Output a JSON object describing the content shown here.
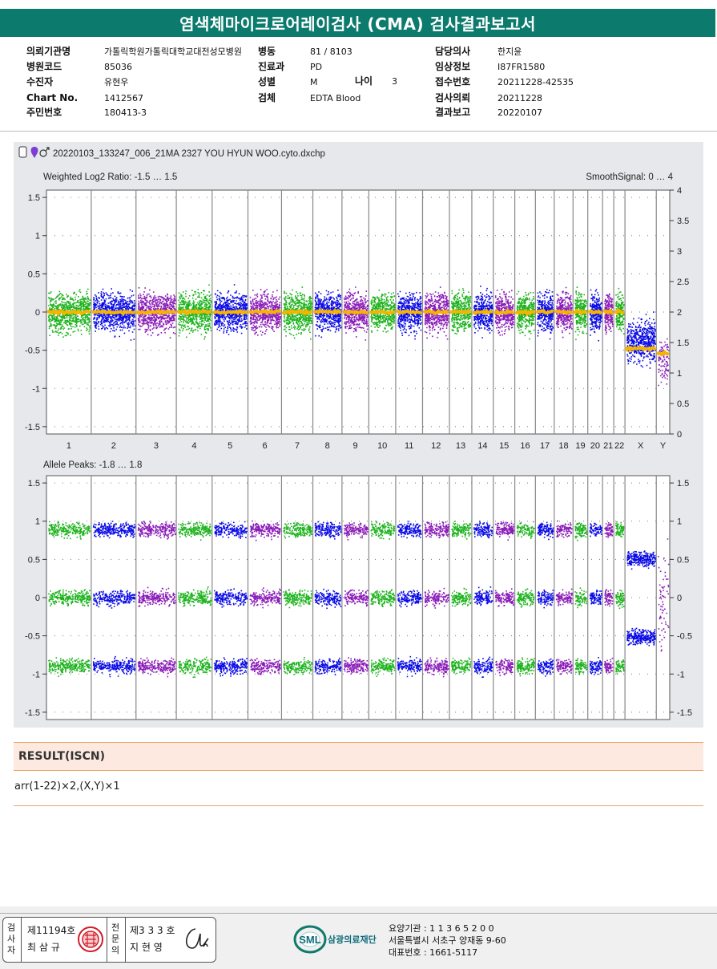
{
  "title": "염색체마이크로어레이검사 (CMA) 검사결과보고서",
  "info_rows": [
    [
      {
        "label": "의뢰기관명",
        "value": "가톨릭학원가톨릭대학교대전성모병원"
      },
      {
        "label": "병동",
        "value": "81 / 8103"
      },
      {
        "label": "담당의사",
        "value": "한지윤"
      }
    ],
    [
      {
        "label": "병원코드",
        "value": "85036"
      },
      {
        "label": "진료과",
        "value": "PD"
      },
      {
        "label": "임상정보",
        "value": "I87FR1580"
      }
    ],
    [
      {
        "label": "수진자",
        "value": "유현우"
      },
      {
        "label": "성별",
        "value": "M"
      },
      {
        "label": "접수번호",
        "value": "20211228-42535"
      }
    ],
    [
      {
        "label": "Chart No.",
        "value": "1412567"
      },
      {
        "label": "검체",
        "value": "EDTA Blood"
      },
      {
        "label": "검사의뢰",
        "value": "20211228"
      }
    ],
    [
      {
        "label": "주민번호",
        "value": "180413-3"
      },
      {
        "label": "",
        "value": ""
      },
      {
        "label": "결과보고",
        "value": "20220107"
      }
    ]
  ],
  "age": {
    "label": "나이",
    "value": "3"
  },
  "plot": {
    "file_name": "20220103_133247_006_21MA 2327 YOU HYUN WOO.cyto.dxchp",
    "top": {
      "left_title": "Weighted Log2 Ratio: -1.5 … 1.5",
      "right_title": "SmoothSignal: 0 … 4",
      "left_ticks": [
        "1.5",
        "1",
        "0.5",
        "0",
        "-0.5",
        "-1",
        "-1.5"
      ],
      "right_ticks": [
        "4",
        "3.5",
        "3",
        "2.5",
        "2",
        "1.5",
        "1",
        "0.5",
        "0"
      ]
    },
    "bottom": {
      "left_title": "Allele Peaks: -1.8 … 1.8",
      "left_ticks": [
        "1.5",
        "1",
        "0.5",
        "0",
        "-0.5",
        "-1",
        "-1.5"
      ],
      "right_ticks": [
        "1.5",
        "1",
        "0.5",
        "0",
        "-0.5",
        "-1",
        "-1.5"
      ]
    },
    "chromosomes": [
      "1",
      "2",
      "3",
      "4",
      "5",
      "6",
      "7",
      "8",
      "9",
      "10",
      "11",
      "12",
      "13",
      "14",
      "15",
      "16",
      "17",
      "18",
      "19",
      "20",
      "21",
      "22",
      "X",
      "Y"
    ],
    "colors": {
      "green": "#1db31d",
      "blue": "#0a0ae6",
      "purple": "#8a1bb8",
      "smooth": "#f5b400",
      "grid": "#7f7f7f"
    }
  },
  "result": {
    "heading": "RESULT(ISCN)",
    "text": "arr(1-22)×2,(X,Y)×1"
  },
  "footer": {
    "signer1_role_chars": [
      "검",
      "사",
      "자"
    ],
    "signer1_no": "제11194호",
    "signer1_name": "최 삼 규",
    "signer2_role_chars": [
      "전",
      "문",
      "의"
    ],
    "signer2_no": "제3 3 3 호",
    "signer2_name": "지 현 영",
    "logo_text": "SML",
    "org_name": "삼광의료재단",
    "address_lines": [
      "요양기관 : 1 1 3 6 5 2 0 0",
      "서울특별시 서초구 양재동 9-60",
      "대표번호 : 1661-5117"
    ]
  }
}
